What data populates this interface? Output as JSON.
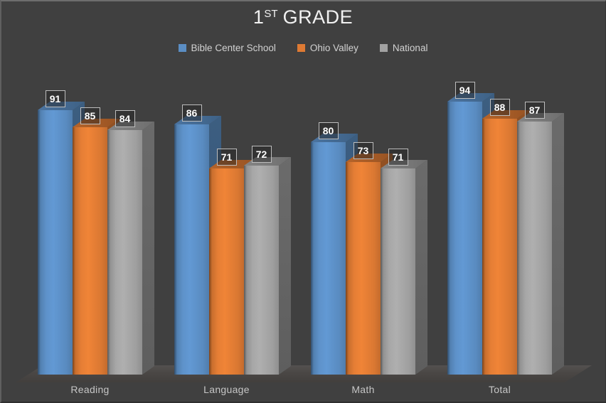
{
  "window": {
    "background": "#404040"
  },
  "header": {
    "title_number": "1",
    "title_suffix": "ST",
    "title_rest": "GRADE"
  },
  "chart_data": {
    "type": "bar",
    "style": "3d-clustered-column",
    "title": "1ST GRADE",
    "categories": [
      "Reading",
      "Language",
      "Math",
      "Total"
    ],
    "series": [
      {
        "name": "Bible Center School",
        "color": "#5B8EC4",
        "values": [
          91,
          86,
          80,
          94
        ]
      },
      {
        "name": "Ohio Valley",
        "color": "#DE7A33",
        "values": [
          85,
          71,
          73,
          88
        ]
      },
      {
        "name": "National",
        "color": "#A2A2A2",
        "values": [
          84,
          72,
          71,
          87
        ]
      }
    ],
    "ylim": [
      0,
      100
    ],
    "value_labels": true,
    "gridlines": false,
    "legend_position": "top-center",
    "background_color": "#404040",
    "floor_color": "#4A4745",
    "value_label_text_color": "#FFFFFF",
    "value_label_border_color": "#BDBDBD",
    "category_label_color": "#C6C6C6",
    "legend_text_color": "#D2D2D2",
    "title_color": "#F2F2F2"
  }
}
